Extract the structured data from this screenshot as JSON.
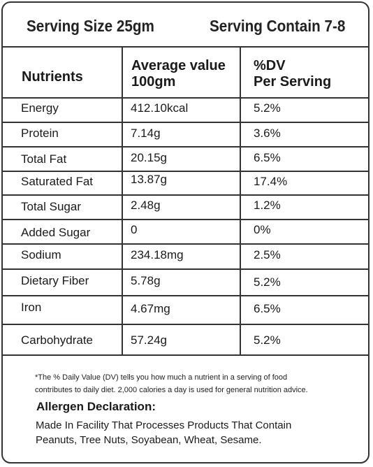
{
  "serving": {
    "size": "Serving Size 25gm",
    "contain": "Serving Contain 7-8"
  },
  "table": {
    "headers": {
      "nutrients": "Nutrients",
      "avg_line1": "Average value",
      "avg_line2": "100gm",
      "dv_line1": "%DV",
      "dv_line2": "Per Serving"
    },
    "rows": [
      {
        "nutrient": "Energy",
        "value": "412.10kcal",
        "dv": "5.2%"
      },
      {
        "nutrient": "Protein",
        "value": "7.14g",
        "dv": "3.6%"
      },
      {
        "nutrient": "Total Fat",
        "value": "20.15g",
        "dv": "6.5%"
      },
      {
        "nutrient": "Saturated Fat",
        "value": "13.87g",
        "dv": "17.4%"
      },
      {
        "nutrient": "Total Sugar",
        "value": "2.48g",
        "dv": "1.2%"
      },
      {
        "nutrient": "Added Sugar",
        "value": "0",
        "dv": "0%"
      },
      {
        "nutrient": "Sodium",
        "value": "234.18mg",
        "dv": "2.5%"
      },
      {
        "nutrient": "Dietary Fiber",
        "value": "5.78g",
        "dv": "5.2%"
      },
      {
        "nutrient": "Iron",
        "value": "4.67mg",
        "dv": "6.5%"
      },
      {
        "nutrient": "Carbohydrate",
        "value": "57.24g",
        "dv": "5.2%"
      }
    ]
  },
  "footnote": {
    "line1": "*The % Daily Value (DV) tells you how much a nutrient in a serving of food",
    "line2": "contributes to daily diet. 2,000 calories a day is used for general nutrition advice."
  },
  "allergen": {
    "title": "Allergen Declaration:",
    "line1": "Made In Facility That Processes Products That Contain",
    "line2": "Peanuts, Tree Nuts, Soyabean, Wheat, Sesame."
  }
}
